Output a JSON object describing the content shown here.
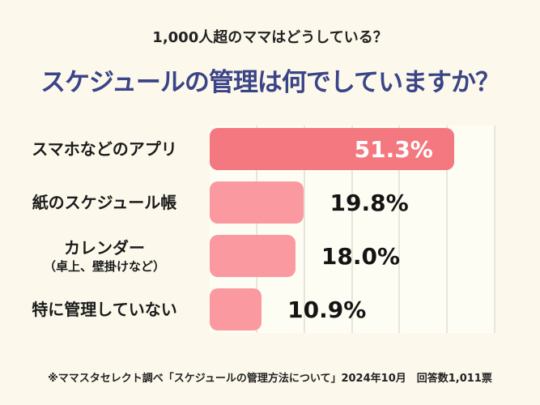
{
  "page": {
    "background": "#FCF9EC",
    "accent_navy": "#3A4487",
    "bar_primary_color": "#F4787F",
    "bar_secondary_color": "#FA99A0",
    "gridline_color": "#E8E5DA"
  },
  "header": {
    "subtitle": "1,000人超のママはどうしている？",
    "title": "スケジュールの管理は何でしていますか？"
  },
  "chart_data": {
    "type": "bar",
    "orientation": "horizontal",
    "title": "スケジュールの管理は何でしていますか？",
    "categories": [
      "スマホなどのアプリ",
      "紙のスケジュール帳",
      "カレンダー（卓上、壁掛けなど）",
      "特に管理していない"
    ],
    "values": [
      51.3,
      19.8,
      18.0,
      10.9
    ],
    "value_labels": [
      "51.3%",
      "19.8%",
      "18.0%",
      "10.9%"
    ],
    "xlim": [
      0,
      60
    ],
    "gridlines": [
      10,
      20,
      30,
      40,
      50,
      60
    ],
    "grid": true,
    "legend": false,
    "rows": [
      {
        "label": "スマホなどのアプリ",
        "sublabel": "",
        "value": 51.3,
        "display": "51.3%",
        "color": "#F4787F",
        "value_inside": true
      },
      {
        "label": "紙のスケジュール帳",
        "sublabel": "",
        "value": 19.8,
        "display": "19.8%",
        "color": "#FA99A0",
        "value_inside": false
      },
      {
        "label": "カレンダー",
        "sublabel": "（卓上、壁掛けなど）",
        "value": 18.0,
        "display": "18.0%",
        "color": "#FA99A0",
        "value_inside": false
      },
      {
        "label": "特に管理していない",
        "sublabel": "",
        "value": 10.9,
        "display": "10.9%",
        "color": "#FA99A0",
        "value_inside": false
      }
    ]
  },
  "footer": {
    "note": "※ママスタセレクト調べ「スケジュールの管理方法について」2024年10月　回答数1,011票"
  }
}
